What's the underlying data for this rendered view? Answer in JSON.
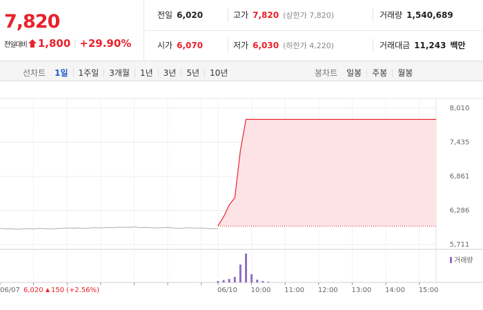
{
  "quote": {
    "price": "7,820",
    "change_label": "전일대비",
    "change": "1,800",
    "change_pct": "+29.90%"
  },
  "stats": [
    {
      "label": "전일",
      "value": "6,020"
    },
    {
      "label": "고가",
      "value": "7,820",
      "note": "(상한가 7,820)"
    },
    {
      "label": "거래량",
      "value": "1,540,689"
    },
    {
      "label": "시가",
      "value": "6,070"
    },
    {
      "label": "저가",
      "value": "6,030",
      "note": "(하한가 4,220)"
    },
    {
      "label": "거래대금",
      "value": "11,243",
      "unit": "백만"
    }
  ],
  "tabs": {
    "line_label": "선차트",
    "line_items": [
      "1일",
      "1주일",
      "3개월",
      "1년",
      "3년",
      "5년",
      "10년"
    ],
    "active": 0,
    "candle_label": "봉차트",
    "candle_items": [
      "일봉",
      "주봉",
      "월봉"
    ]
  },
  "prev_day": {
    "close": "6,020",
    "change": "150",
    "change_pct": "(+2.56%)"
  },
  "chart_data": {
    "type": "line",
    "ylim": [
      5630,
      8173
    ],
    "yticks": [
      {
        "value": 8010,
        "label": "8,010"
      },
      {
        "value": 7435,
        "label": "7,435"
      },
      {
        "value": 6861,
        "label": "6,861"
      },
      {
        "value": 6286,
        "label": "6,286"
      },
      {
        "value": 5711,
        "label": "5,711"
      }
    ],
    "xlim": [
      0,
      78
    ],
    "xticks": [
      {
        "value": 0,
        "label": "06/07"
      },
      {
        "value": 6,
        "label": null
      },
      {
        "value": 12,
        "label": null
      },
      {
        "value": 18,
        "label": null
      },
      {
        "value": 24,
        "label": null
      },
      {
        "value": 30,
        "label": null
      },
      {
        "value": 36,
        "label": null
      },
      {
        "value": 39,
        "label": "06/10"
      },
      {
        "value": 45,
        "label": "10:00"
      },
      {
        "value": 51,
        "label": "11:00"
      },
      {
        "value": 57,
        "label": "12:00"
      },
      {
        "value": 63,
        "label": "13:00"
      },
      {
        "value": 69,
        "label": "14:00"
      },
      {
        "value": 75,
        "label": "15:00"
      }
    ],
    "base": 6020,
    "series": [
      {
        "color": "#b9b9b9",
        "values": [
          5985,
          5975,
          5980,
          5970,
          5975,
          5980,
          5975,
          5985,
          5980,
          5975,
          5980,
          5985,
          5990,
          5985,
          5990,
          5985,
          5990,
          5995,
          5990,
          6000,
          5995,
          6000,
          6005,
          6000,
          6010,
          5995,
          6000,
          5995,
          5990,
          5995,
          6000,
          5990,
          5985,
          5990,
          5995,
          5985,
          5990,
          5985,
          5980,
          5980,
          null,
          null,
          null,
          null,
          null,
          null,
          null,
          null,
          null,
          null,
          null,
          null,
          null,
          null,
          null,
          null,
          null,
          null,
          null,
          null,
          null,
          null,
          null,
          null,
          null,
          null,
          null,
          null,
          null,
          null,
          null,
          null,
          null,
          null,
          null,
          null,
          null,
          null,
          null
        ]
      },
      {
        "color": "#e8212b",
        "values": [
          null,
          null,
          null,
          null,
          null,
          null,
          null,
          null,
          null,
          null,
          null,
          null,
          null,
          null,
          null,
          null,
          null,
          null,
          null,
          null,
          null,
          null,
          null,
          null,
          null,
          null,
          null,
          null,
          null,
          null,
          null,
          null,
          null,
          null,
          null,
          null,
          null,
          null,
          null,
          6030,
          6180,
          6380,
          6500,
          7300,
          7820,
          7820,
          7820,
          7820,
          7820,
          7820,
          7820,
          7820,
          7820,
          7820,
          7820,
          7820,
          7820,
          7820,
          7820,
          7820,
          7820,
          7820,
          7820,
          7820,
          7820,
          7820,
          7820,
          7820,
          7820,
          7820,
          7820,
          7820,
          7820,
          7820,
          7820,
          7820,
          7820,
          7820,
          7820
        ]
      }
    ],
    "area_color": "#fde3e5",
    "volume": {
      "name": "거래량",
      "color": "#8d6fc2",
      "values": [
        null,
        null,
        null,
        null,
        null,
        null,
        null,
        null,
        null,
        null,
        null,
        null,
        null,
        null,
        null,
        null,
        null,
        null,
        null,
        null,
        null,
        null,
        null,
        null,
        null,
        null,
        null,
        null,
        null,
        null,
        null,
        null,
        null,
        null,
        null,
        null,
        null,
        null,
        null,
        20,
        35,
        50,
        80,
        260,
        420,
        120,
        40,
        20,
        10,
        null,
        null,
        null,
        null,
        null,
        null,
        null,
        null,
        null,
        null,
        null,
        null,
        null,
        null,
        null,
        null,
        null,
        null,
        null,
        null,
        null,
        null,
        null,
        null,
        null,
        null,
        null,
        null,
        null,
        null
      ]
    }
  }
}
